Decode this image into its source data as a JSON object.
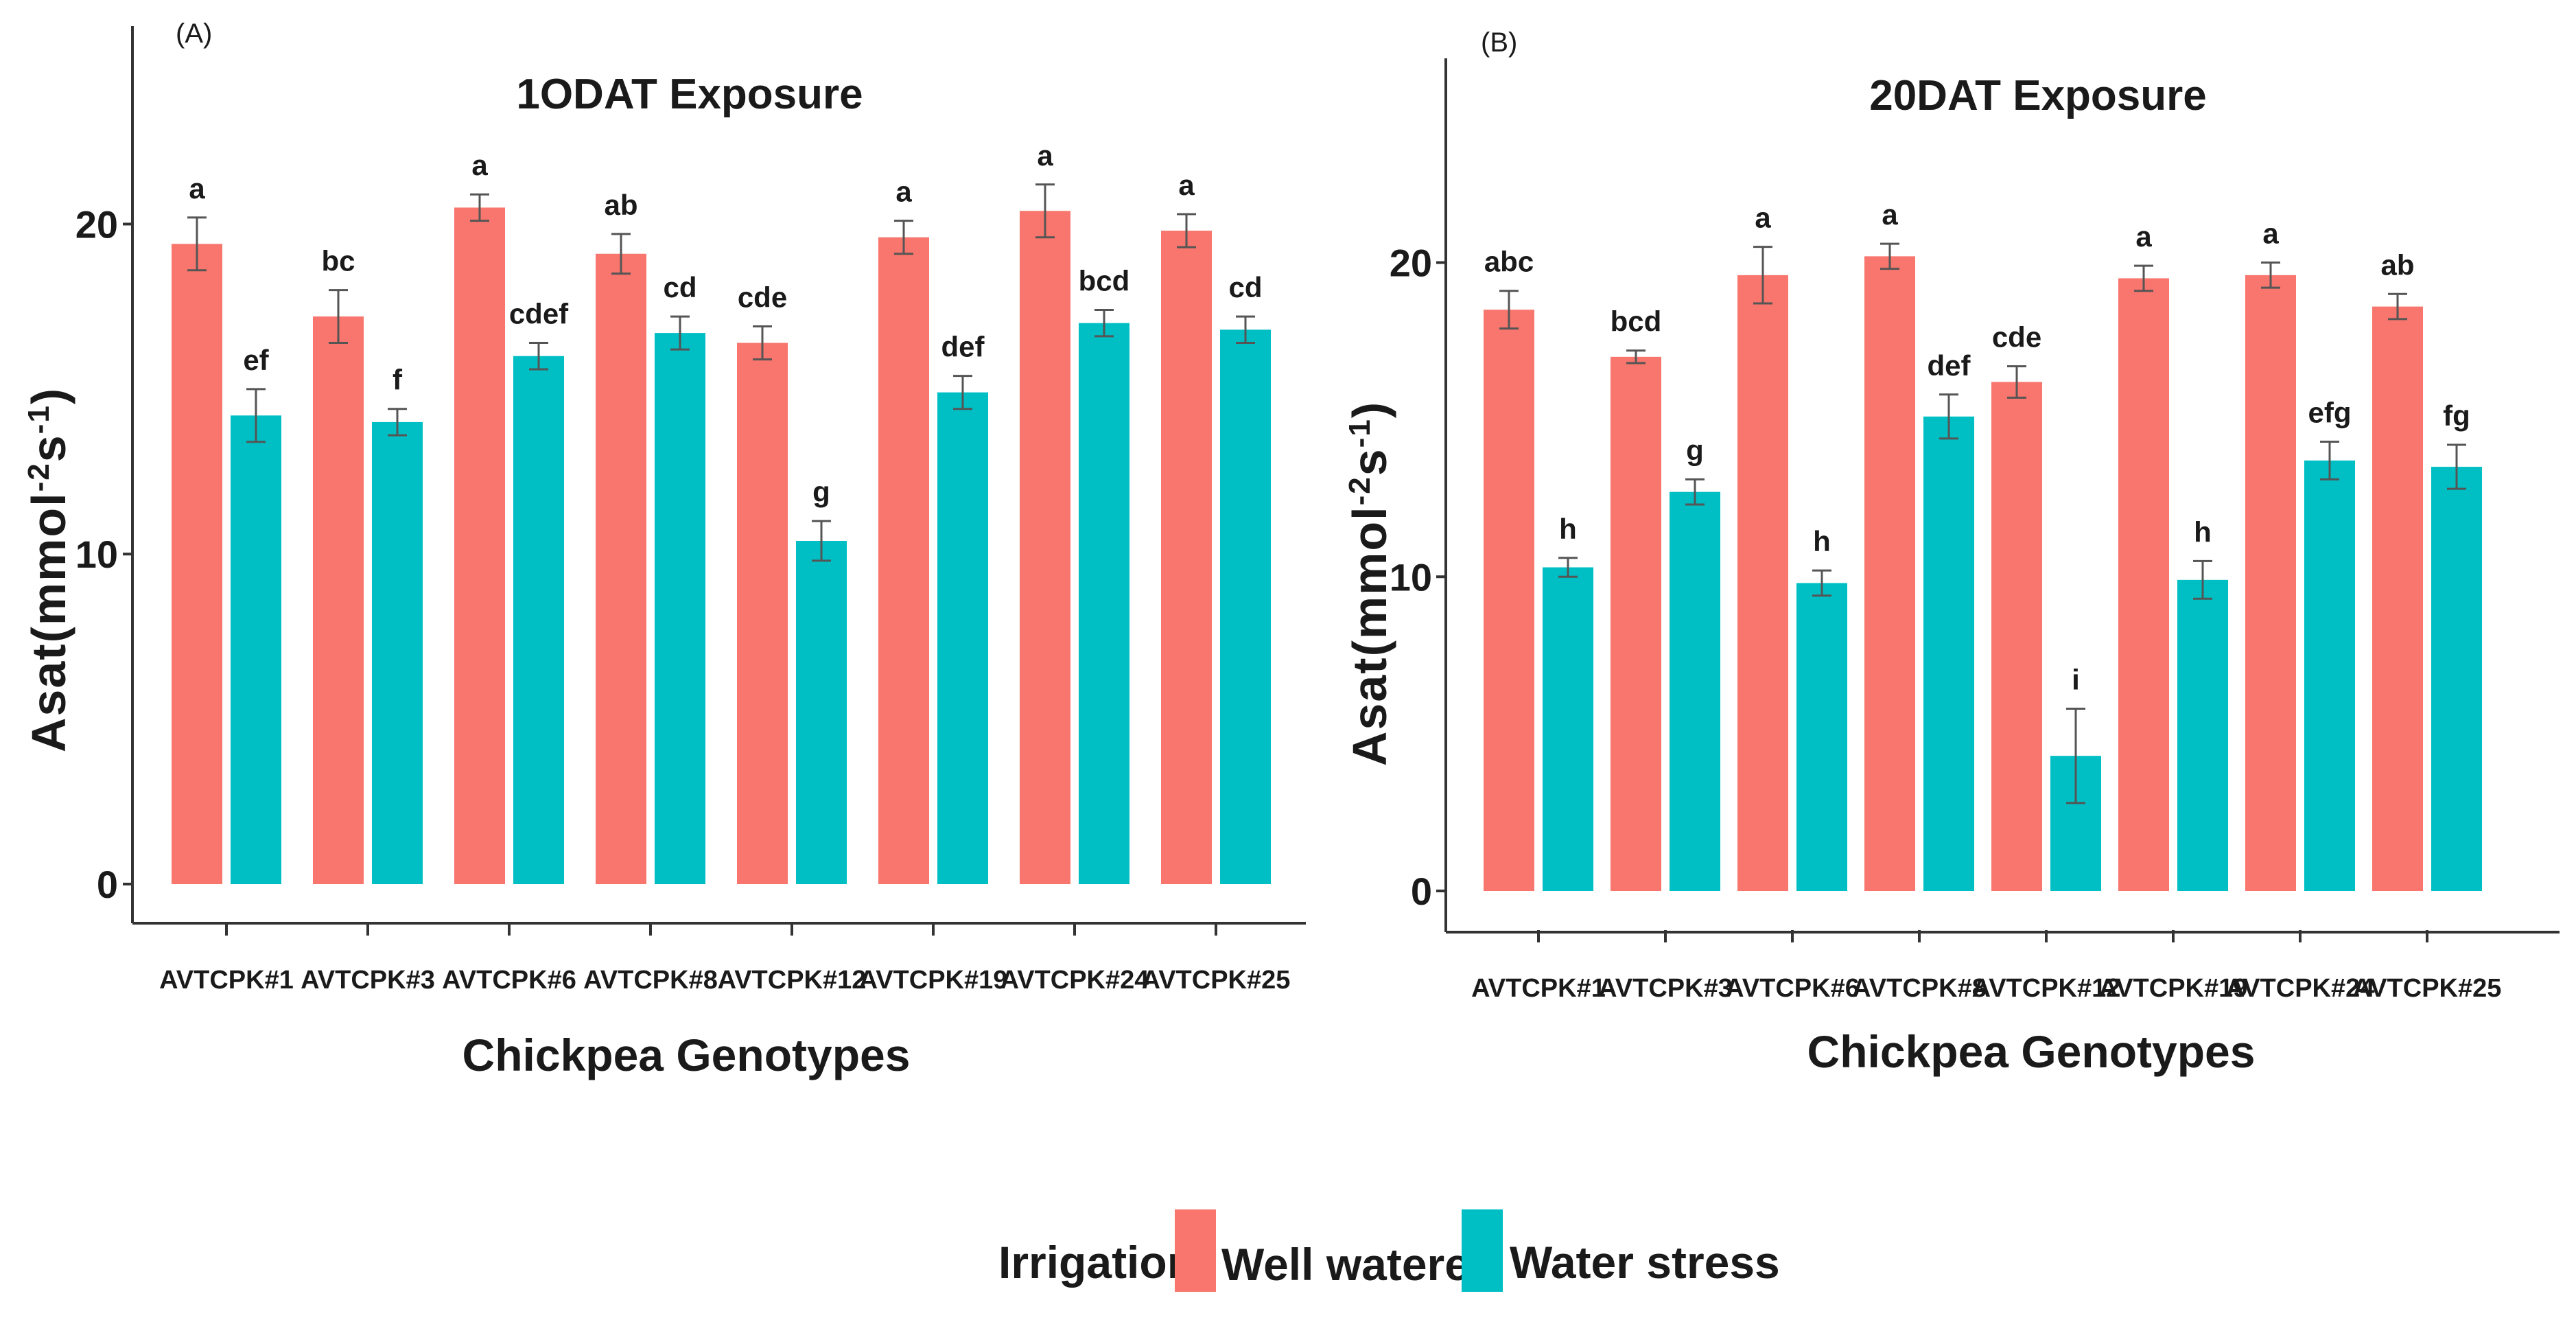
{
  "figure": {
    "legend": {
      "title": "Irrigation",
      "items": [
        {
          "label": "Well watered",
          "color": "#F8766D"
        },
        {
          "label": "Water stress",
          "color": "#00BFC4"
        }
      ]
    }
  },
  "chart_data": [
    {
      "type": "bar",
      "panel_label": "(A)",
      "title": "1ODAT Exposure",
      "xlabel": "Chickpea Genotypes",
      "ylabel": "Asat(mmol",
      "ylabel_sup1": "-2",
      "ylabel_mid": "s",
      "ylabel_sup2": "-1",
      "ylabel_end": ")",
      "ylim": [
        0,
        26
      ],
      "yticks": [
        0,
        10,
        20
      ],
      "grid": false,
      "legend_position": "bottom",
      "categories": [
        "AVTCPK#1",
        "AVTCPK#3",
        "AVTCPK#6",
        "AVTCPK#8",
        "AVTCPK#12",
        "AVTCPK#19",
        "AVTCPK#24",
        "AVTCPK#25"
      ],
      "series": [
        {
          "name": "Well watered",
          "color": "#F8766D",
          "values": [
            19.4,
            17.2,
            20.5,
            19.1,
            16.4,
            19.6,
            20.4,
            19.8
          ],
          "errors": [
            0.8,
            0.8,
            0.4,
            0.6,
            0.5,
            0.5,
            0.8,
            0.5
          ],
          "letters": [
            "a",
            "bc",
            "a",
            "ab",
            "cde",
            "a",
            "a",
            "a"
          ]
        },
        {
          "name": "Water stress",
          "color": "#00BFC4",
          "values": [
            14.2,
            14.0,
            16.0,
            16.7,
            10.4,
            14.9,
            17.0,
            16.8
          ],
          "errors": [
            0.8,
            0.4,
            0.4,
            0.5,
            0.6,
            0.5,
            0.4,
            0.4
          ],
          "letters": [
            "ef",
            "f",
            "cdef",
            "cd",
            "g",
            "def",
            "bcd",
            "cd"
          ]
        }
      ]
    },
    {
      "type": "bar",
      "panel_label": "(B)",
      "title": "20DAT Exposure",
      "xlabel": "Chickpea Genotypes",
      "ylabel": "Asat(mmol",
      "ylabel_sup1": "-2",
      "ylabel_mid": "s",
      "ylabel_sup2": "-1",
      "ylabel_end": ")",
      "ylim": [
        0,
        26.5
      ],
      "yticks": [
        0,
        10,
        20
      ],
      "grid": false,
      "legend_position": "bottom",
      "categories": [
        "AVTCPK#1",
        "AVTCPK#3",
        "AVTCPK#6",
        "AVTCPK#8",
        "AVTCPK#12",
        "AVTCPK#19",
        "AVTCPK#24",
        "AVTCPK#25"
      ],
      "series": [
        {
          "name": "Well watered",
          "color": "#F8766D",
          "values": [
            18.5,
            17.0,
            19.6,
            20.2,
            16.2,
            19.5,
            19.6,
            18.6
          ],
          "errors": [
            0.6,
            0.2,
            0.9,
            0.4,
            0.5,
            0.4,
            0.4,
            0.4
          ],
          "letters": [
            "abc",
            "bcd",
            "a",
            "a",
            "cde",
            "a",
            "a",
            "ab"
          ]
        },
        {
          "name": "Water stress",
          "color": "#00BFC4",
          "values": [
            10.3,
            12.7,
            9.8,
            15.1,
            4.3,
            9.9,
            13.7,
            13.5
          ],
          "errors": [
            0.3,
            0.4,
            0.4,
            0.7,
            1.5,
            0.6,
            0.6,
            0.7
          ],
          "letters": [
            "h",
            "g",
            "h",
            "def",
            "i",
            "h",
            "efg",
            "fg"
          ]
        }
      ]
    }
  ]
}
